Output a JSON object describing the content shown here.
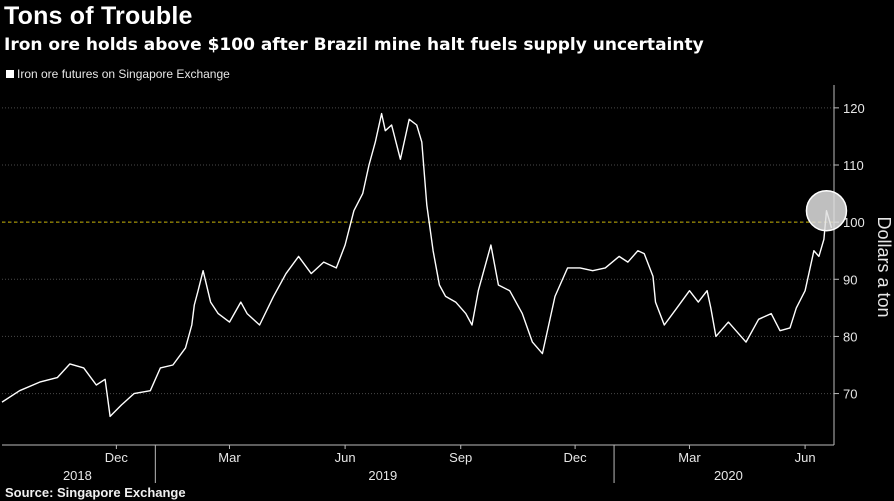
{
  "header": {
    "title": "Tons of Trouble",
    "subtitle": "Iron ore holds above $100 after Brazil mine halt fuels supply uncertainty"
  },
  "legend": {
    "label": "Iron ore futures on Singapore Exchange"
  },
  "footer": {
    "source": "Source: Singapore Exchange"
  },
  "colors": {
    "background": "#000000",
    "line": "#ffffff",
    "grid": "#4a4a4a",
    "reference": "#c8b400",
    "highlight": "#e0e0e0"
  },
  "chart_data": {
    "type": "line",
    "ylabel": "Dollars a ton",
    "ylim": [
      61,
      124
    ],
    "yticks": [
      70,
      80,
      90,
      100,
      110,
      120
    ],
    "xlim": [
      "2018-09-01",
      "2020-06-24"
    ],
    "x_month_ticks": [
      {
        "date": "2018-12-01",
        "label": "Dec"
      },
      {
        "date": "2019-03-01",
        "label": "Mar"
      },
      {
        "date": "2019-06-01",
        "label": "Jun"
      },
      {
        "date": "2019-09-01",
        "label": "Sep"
      },
      {
        "date": "2019-12-01",
        "label": "Dec"
      },
      {
        "date": "2020-03-01",
        "label": "Mar"
      },
      {
        "date": "2020-06-01",
        "label": "Jun"
      }
    ],
    "x_year_labels": [
      {
        "date": "2018-10-31",
        "label": "2018"
      },
      {
        "date": "2019-07-01",
        "label": "2019"
      },
      {
        "date": "2020-04-01",
        "label": "2020"
      }
    ],
    "year_dividers": [
      "2019-01-01",
      "2020-01-01"
    ],
    "reference_line": 100,
    "grid": true,
    "legend_position": "top-left",
    "highlight_point": {
      "date": "2020-06-18",
      "value": 102
    },
    "series": [
      {
        "name": "Iron ore futures on Singapore Exchange",
        "x": [
          "2018-09-01",
          "2018-09-15",
          "2018-10-01",
          "2018-10-15",
          "2018-10-25",
          "2018-11-05",
          "2018-11-15",
          "2018-11-22",
          "2018-11-26",
          "2018-12-05",
          "2018-12-15",
          "2018-12-28",
          "2019-01-05",
          "2019-01-15",
          "2019-01-25",
          "2019-01-30",
          "2019-02-01",
          "2019-02-04",
          "2019-02-08",
          "2019-02-14",
          "2019-02-20",
          "2019-03-01",
          "2019-03-10",
          "2019-03-15",
          "2019-03-25",
          "2019-04-05",
          "2019-04-15",
          "2019-04-25",
          "2019-05-05",
          "2019-05-15",
          "2019-05-25",
          "2019-06-01",
          "2019-06-08",
          "2019-06-15",
          "2019-06-20",
          "2019-06-25",
          "2019-06-30",
          "2019-07-03",
          "2019-07-08",
          "2019-07-15",
          "2019-07-22",
          "2019-07-28",
          "2019-08-01",
          "2019-08-05",
          "2019-08-10",
          "2019-08-15",
          "2019-08-20",
          "2019-08-28",
          "2019-09-05",
          "2019-09-10",
          "2019-09-15",
          "2019-09-25",
          "2019-10-01",
          "2019-10-10",
          "2019-10-20",
          "2019-10-28",
          "2019-11-05",
          "2019-11-15",
          "2019-11-25",
          "2019-12-05",
          "2019-12-15",
          "2019-12-25",
          "2020-01-05",
          "2020-01-12",
          "2020-01-20",
          "2020-01-25",
          "2020-02-01",
          "2020-02-03",
          "2020-02-10",
          "2020-02-20",
          "2020-03-01",
          "2020-03-08",
          "2020-03-15",
          "2020-03-18",
          "2020-03-22",
          "2020-04-01",
          "2020-04-15",
          "2020-04-25",
          "2020-05-05",
          "2020-05-12",
          "2020-05-20",
          "2020-05-25",
          "2020-06-01",
          "2020-06-08",
          "2020-06-12",
          "2020-06-16",
          "2020-06-18",
          "2020-06-22"
        ],
        "values": [
          68.5,
          70.5,
          72,
          72.8,
          75.2,
          74.5,
          71.5,
          72.5,
          66,
          68,
          70,
          70.5,
          74.5,
          75,
          78,
          82,
          85.5,
          88,
          91.5,
          86,
          84,
          82.5,
          86,
          84,
          82,
          87,
          91,
          94,
          91,
          93,
          92,
          96,
          102,
          105,
          110,
          114,
          119,
          116,
          117,
          111,
          118,
          117,
          114,
          103,
          95,
          89,
          87,
          86,
          84,
          82,
          88,
          96,
          89,
          88,
          84,
          79,
          77,
          87,
          92,
          92,
          91.5,
          92,
          94,
          93,
          95,
          94.5,
          90.5,
          86,
          82,
          85,
          88,
          86,
          88,
          85,
          80,
          82.5,
          79,
          83,
          84,
          81,
          81.5,
          85,
          88,
          95,
          94,
          97,
          102,
          99
        ]
      }
    ]
  }
}
